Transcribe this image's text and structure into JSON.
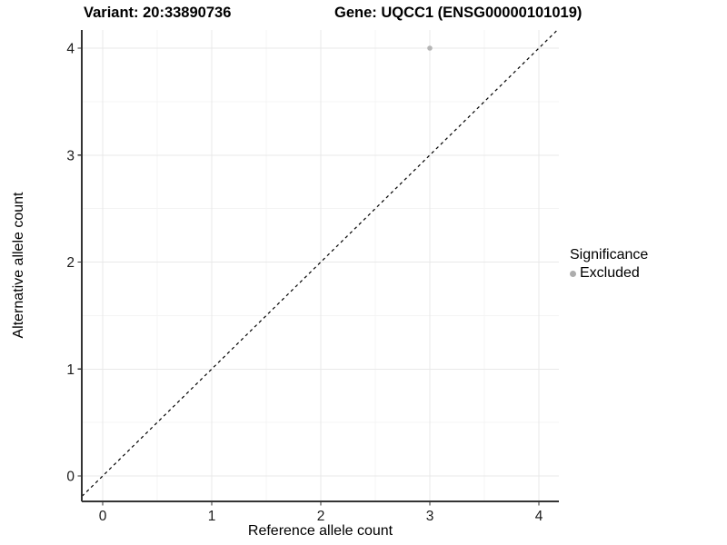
{
  "chart_data": {
    "type": "scatter",
    "title_left": "Variant: 20:33890736",
    "title_right": "Gene: UQCC1 (ENSG00000101019)",
    "xlabel": "Reference allele count",
    "ylabel": "Alternative allele count",
    "xticks": [
      0,
      1,
      2,
      3,
      4
    ],
    "yticks": [
      0,
      1,
      2,
      3,
      4
    ],
    "xlim": [
      -0.19,
      4.19
    ],
    "ylim": [
      -0.24,
      4.17
    ],
    "grid": "major+minor",
    "reference_line": {
      "type": "abline",
      "slope": 1,
      "intercept": 0,
      "style": "dashed",
      "color": "#000000"
    },
    "series": [
      {
        "name": "Excluded",
        "color": "#b5b5b5",
        "points": [
          {
            "x": 3,
            "y": 4
          }
        ]
      }
    ],
    "legend": {
      "title": "Significance",
      "position": "right",
      "items": [
        {
          "label": "Excluded",
          "color": "#adadad"
        }
      ]
    },
    "colors": {
      "background": "#ffffff",
      "grid_major": "#e9e9e9",
      "grid_minor": "#f4f4f4",
      "axis_line": "#333333",
      "tick_label": "#1a1a1a"
    }
  }
}
